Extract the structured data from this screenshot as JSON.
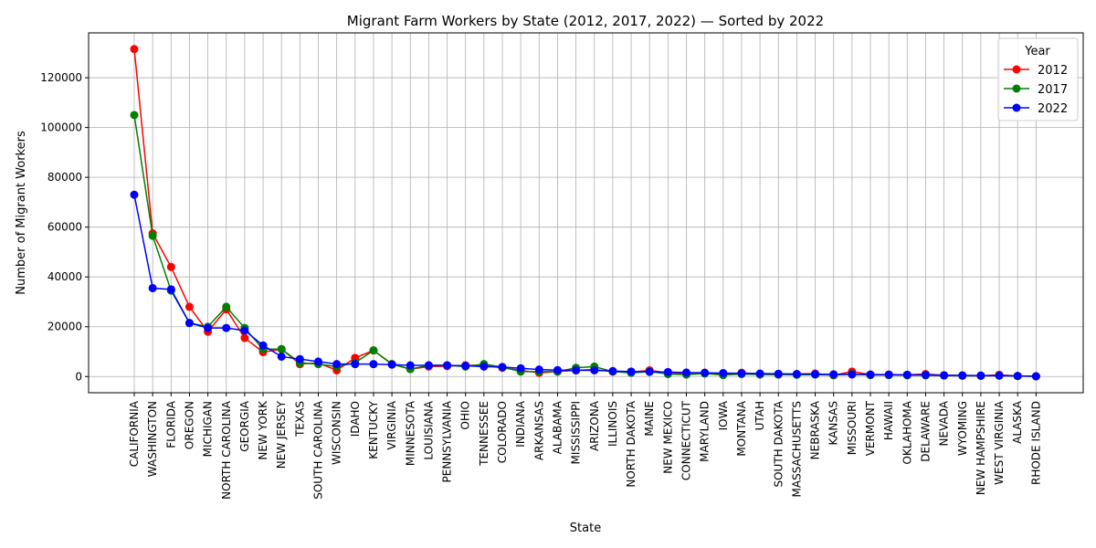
{
  "chart_data": {
    "type": "line",
    "title": "Migrant Farm Workers by State (2012, 2017, 2022) — Sorted by 2022",
    "xlabel": "State",
    "ylabel": "Number of Migrant Workers",
    "ylim": [
      -6500,
      138000
    ],
    "yticks": [
      0,
      20000,
      40000,
      60000,
      80000,
      100000,
      120000
    ],
    "grid": true,
    "legend": {
      "title": "Year",
      "placement": "top-right"
    },
    "categories": [
      "CALIFORNIA",
      "WASHINGTON",
      "FLORIDA",
      "OREGON",
      "MICHIGAN",
      "NORTH CAROLINA",
      "GEORGIA",
      "NEW YORK",
      "NEW JERSEY",
      "TEXAS",
      "SOUTH CAROLINA",
      "WISCONSIN",
      "IDAHO",
      "KENTUCKY",
      "VIRGINIA",
      "MINNESOTA",
      "LOUISIANA",
      "PENNSYLVANIA",
      "OHIO",
      "TENNESSEE",
      "COLORADO",
      "INDIANA",
      "ARKANSAS",
      "ALABAMA",
      "MISSISSIPPI",
      "ARIZONA",
      "ILLINOIS",
      "NORTH DAKOTA",
      "MAINE",
      "NEW MEXICO",
      "CONNECTICUT",
      "MARYLAND",
      "IOWA",
      "MONTANA",
      "UTAH",
      "SOUTH DAKOTA",
      "MASSACHUSETTS",
      "NEBRASKA",
      "KANSAS",
      "MISSOURI",
      "VERMONT",
      "HAWAII",
      "OKLAHOMA",
      "DELAWARE",
      "NEVADA",
      "WYOMING",
      "NEW HAMPSHIRE",
      "WEST VIRGINIA",
      "ALASKA",
      "RHODE ISLAND"
    ],
    "series": [
      {
        "name": "2012",
        "color": "#ff0000",
        "values": [
          131500,
          57500,
          44000,
          28000,
          18000,
          27000,
          15500,
          9800,
          11000,
          5000,
          5500,
          2500,
          7500,
          10500,
          5000,
          3000,
          4000,
          4200,
          4500,
          4500,
          3500,
          2500,
          1500,
          2000,
          2500,
          2800,
          2000,
          1800,
          2500,
          1500,
          1200,
          1500,
          1000,
          1500,
          1000,
          800,
          1000,
          1200,
          500,
          2000,
          800,
          800,
          700,
          1000,
          500,
          400,
          300,
          700,
          200,
          100
        ]
      },
      {
        "name": "2017",
        "color": "#008000",
        "values": [
          105000,
          56500,
          34500,
          21500,
          20000,
          28000,
          19500,
          11000,
          11000,
          5500,
          5000,
          4000,
          5500,
          10500,
          5000,
          3000,
          4500,
          4500,
          4000,
          5000,
          3800,
          2000,
          2000,
          2000,
          3500,
          4000,
          2000,
          1500,
          2000,
          1000,
          800,
          1200,
          600,
          1000,
          800,
          800,
          700,
          800,
          600,
          1000,
          600,
          600,
          500,
          500,
          400,
          300,
          300,
          400,
          200,
          100
        ]
      },
      {
        "name": "2022",
        "color": "#0000ff",
        "values": [
          73000,
          35500,
          35000,
          21500,
          19500,
          19500,
          18500,
          12500,
          8000,
          7000,
          6000,
          5000,
          5000,
          5000,
          4800,
          4500,
          4500,
          4500,
          4300,
          4000,
          3800,
          3300,
          2800,
          2600,
          2500,
          2500,
          2200,
          2000,
          1900,
          1800,
          1600,
          1500,
          1400,
          1300,
          1200,
          1100,
          1000,
          950,
          900,
          850,
          800,
          750,
          700,
          650,
          500,
          450,
          400,
          350,
          250,
          100
        ]
      }
    ]
  }
}
